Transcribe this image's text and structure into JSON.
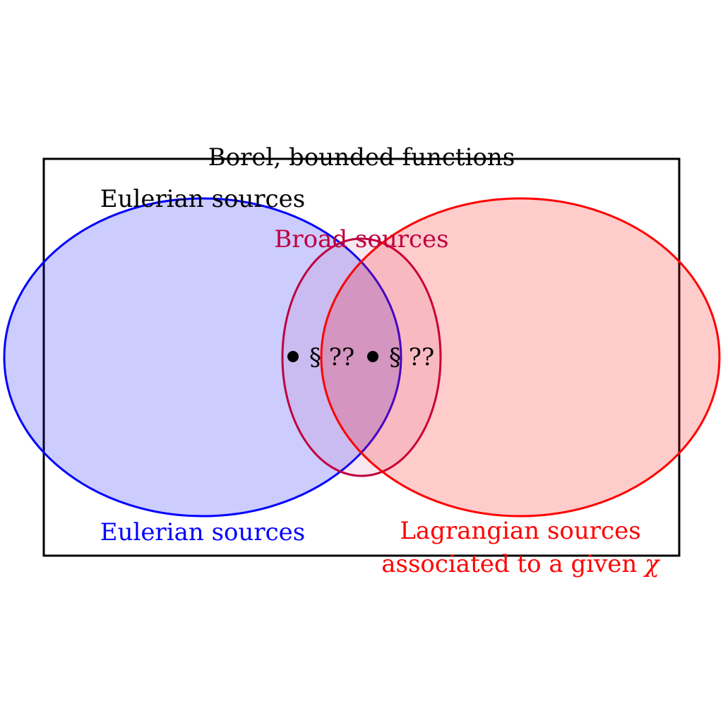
{
  "outer_box": {
    "label": "Borel, bounded functions"
  },
  "eulerian_top": {
    "label": "Eulerian sources"
  },
  "eulerian_bottom": {
    "label": "Eulerian sources"
  },
  "broad": {
    "label": "Broad sources"
  },
  "lagrangian": {
    "line1": "Lagrangian sources",
    "line2_text": "associated to a given ",
    "line2_symbol": "χ"
  },
  "refs": {
    "left": "§ ??",
    "right": "§ ??"
  },
  "colors": {
    "blue": "#0000ff",
    "red": "#ff0000",
    "purple": "#bf0040",
    "black": "#000000"
  }
}
